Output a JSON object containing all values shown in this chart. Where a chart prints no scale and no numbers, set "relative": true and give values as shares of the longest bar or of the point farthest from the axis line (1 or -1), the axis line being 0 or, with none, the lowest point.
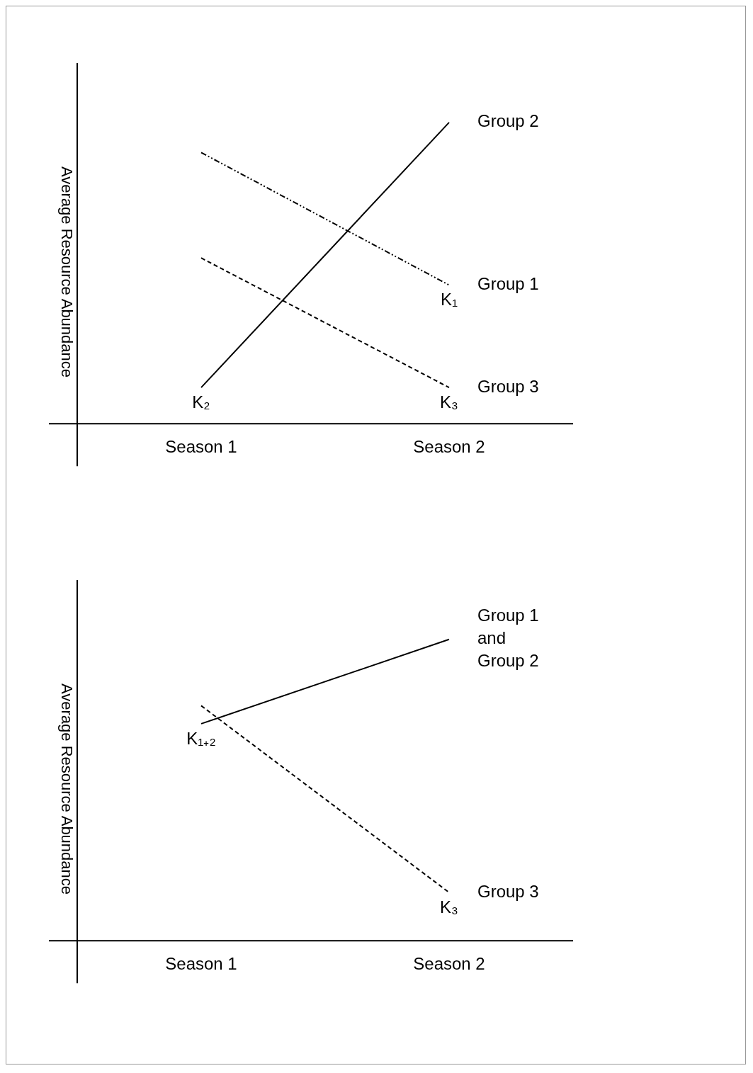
{
  "chart_data": [
    {
      "type": "line",
      "relative": true,
      "ylabel": "Average Resource Abundance",
      "categories": [
        "Season 1",
        "Season 2"
      ],
      "legend": false,
      "series": [
        {
          "name": "Group 2",
          "color": "#000000",
          "line_style": "solid",
          "values": [
            0.12,
            1
          ]
        },
        {
          "name": "Group 1",
          "color": "#000000",
          "line_style": "dotted",
          "values": [
            0.9,
            0.46
          ]
        },
        {
          "name": "Group 3",
          "color": "#000000",
          "line_style": "dashed",
          "values": [
            0.55,
            0.12
          ]
        }
      ],
      "annotations": [
        {
          "text": "K₁",
          "x": "Season 2",
          "y": 0.46
        },
        {
          "text": "K₂",
          "x": "Season 1",
          "y": 0.12
        },
        {
          "text": "K₃",
          "x": "Season 2",
          "y": 0.12
        }
      ]
    },
    {
      "type": "line",
      "relative": true,
      "ylabel": "Average Resource Abundance",
      "categories": [
        "Season 1",
        "Season 2"
      ],
      "legend": false,
      "series": [
        {
          "name": "Group 1 and Group 2",
          "color": "#000000",
          "line_style": "solid",
          "values": [
            0.72,
            1
          ]
        },
        {
          "name": "Group 3",
          "color": "#000000",
          "line_style": "dashed",
          "values": [
            0.78,
            0.16
          ]
        }
      ],
      "annotations": [
        {
          "text": "K₁₊₂",
          "x": "Season 1",
          "y": 0.72
        },
        {
          "text": "K₃",
          "x": "Season 2",
          "y": 0.16
        }
      ]
    }
  ]
}
